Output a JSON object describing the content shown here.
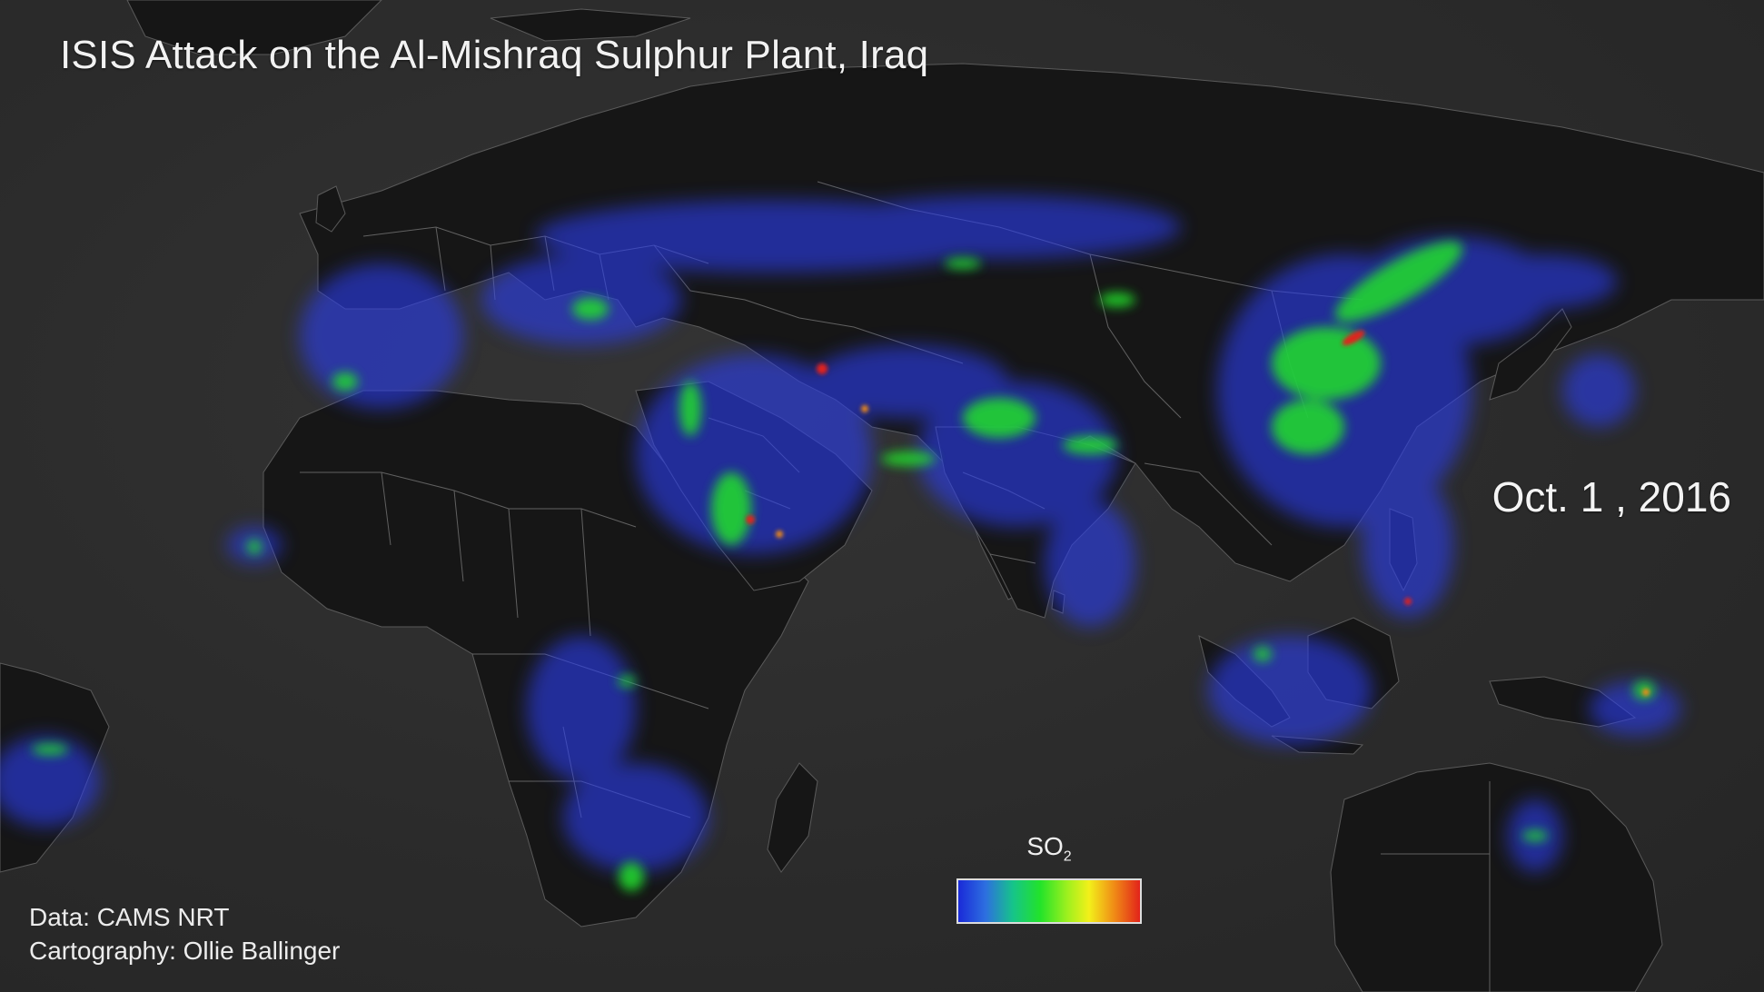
{
  "title": "ISIS Attack on the Al-Mishraq Sulphur Plant, Iraq",
  "date": "Oct. 1 , 2016",
  "credits": {
    "data": "Data: CAMS NRT",
    "cartography": "Cartography: Ollie Ballinger"
  },
  "legend": {
    "label_main": "SO",
    "label_sub": "2",
    "colors": [
      "#1a2ad8",
      "#2d6fe0",
      "#16c48a",
      "#22e32a",
      "#9ef01e",
      "#f3f01a",
      "#f08a16",
      "#e2231a"
    ]
  },
  "colors": {
    "background": "#2a2a2a",
    "land": "#151515",
    "borders": "#8a8a8a",
    "low": "#2b3df0",
    "mid": "#24e02c",
    "high": "#e2231a"
  }
}
